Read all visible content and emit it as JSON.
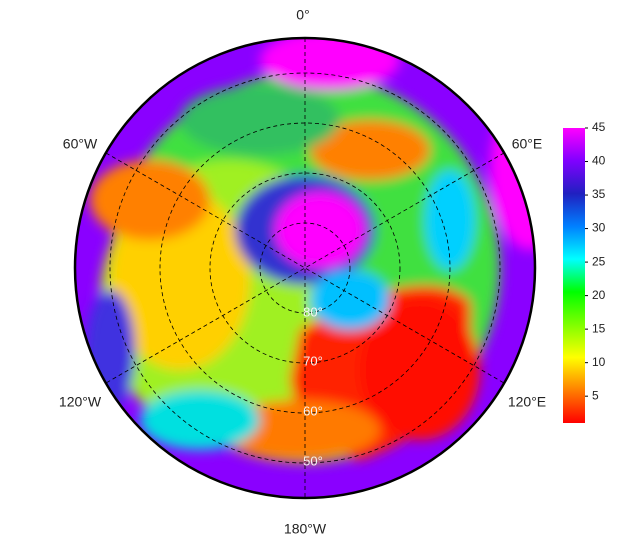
{
  "map": {
    "meridian_labels": {
      "top": "0°",
      "upper_left": "60°W",
      "upper_right": "60°E",
      "lower_left": "120°W",
      "lower_right": "120°E",
      "bottom": "180°W"
    },
    "parallel_labels": [
      "80°",
      "70°",
      "60°",
      "50°"
    ],
    "colorbar": {
      "lim": [
        1,
        45
      ],
      "ticks": [
        5,
        10,
        15,
        20,
        25,
        30,
        35,
        40,
        45
      ],
      "colors": [
        "#ff0000",
        "#ff7f00",
        "#ffff00",
        "#7fff00",
        "#00ff00",
        "#00ffff",
        "#0080ff",
        "#2020c0",
        "#8000ff",
        "#ff00ff"
      ]
    }
  }
}
